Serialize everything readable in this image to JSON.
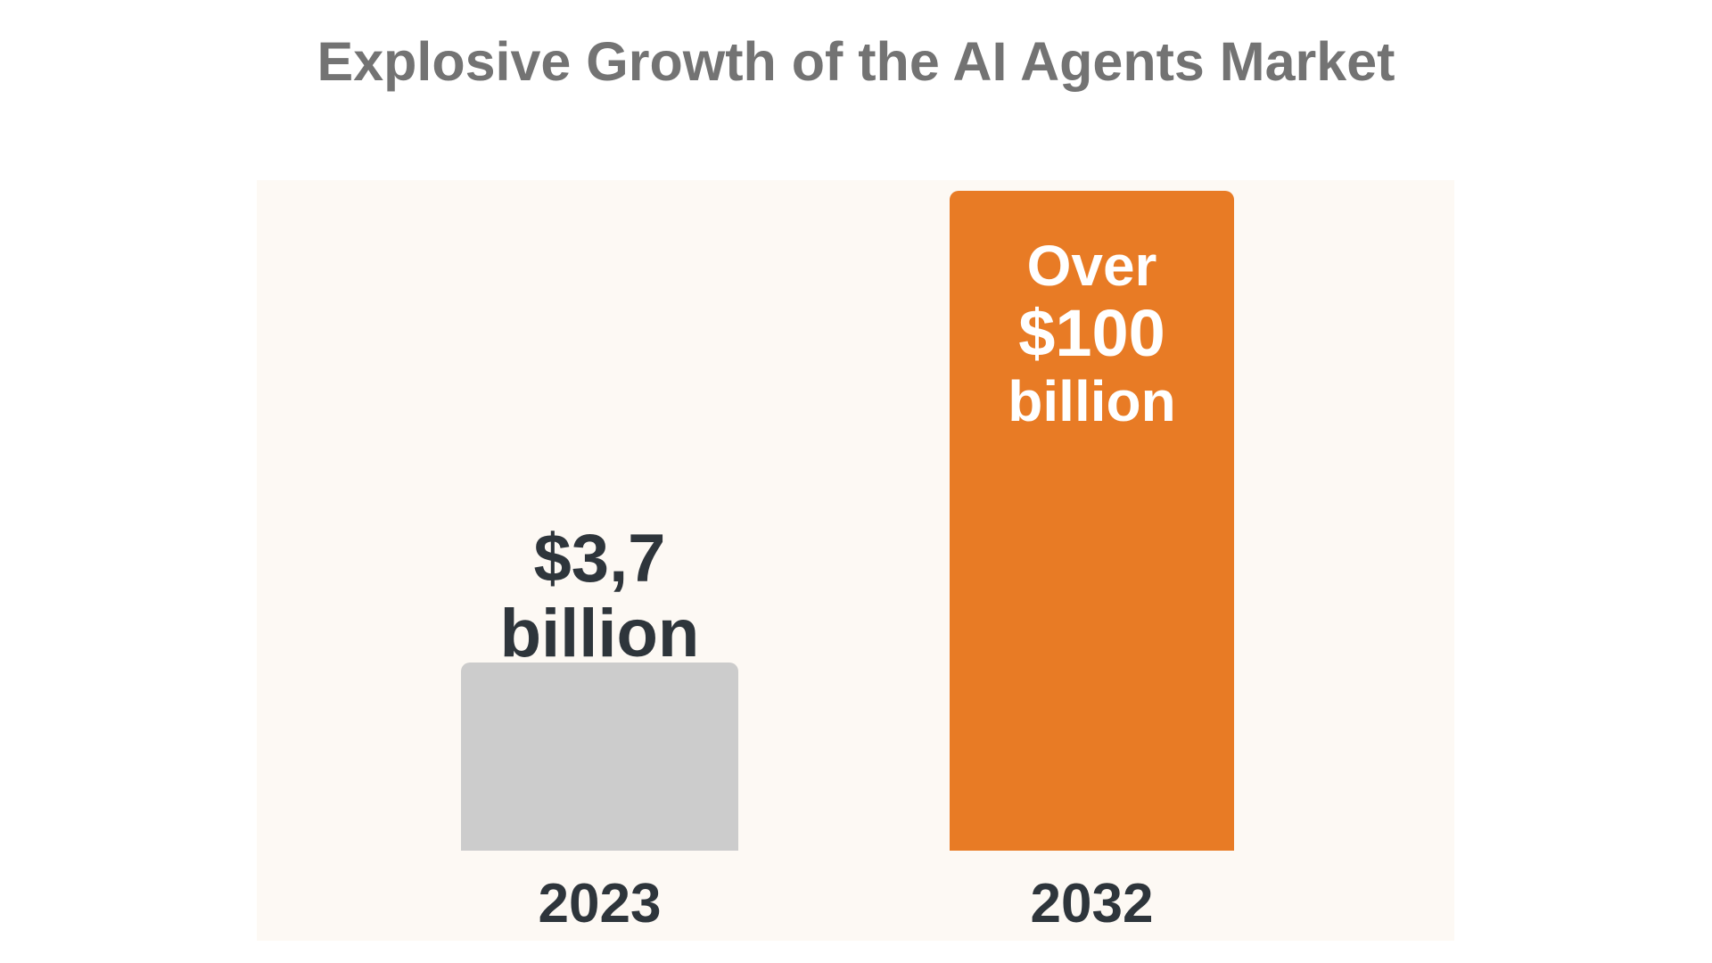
{
  "chart_data": {
    "type": "bar",
    "title": "Explosive Growth of the AI Agents Market",
    "categories": [
      "2023",
      "2032"
    ],
    "values": [
      3.7,
      100
    ],
    "unit": "billion USD",
    "data_labels": [
      [
        "$3,7",
        "billion"
      ],
      [
        "Over",
        "$100",
        "billion"
      ]
    ],
    "colors": [
      "#cccccc",
      "#e87b25"
    ],
    "grid": false,
    "xlabel": "",
    "ylabel": ""
  }
}
